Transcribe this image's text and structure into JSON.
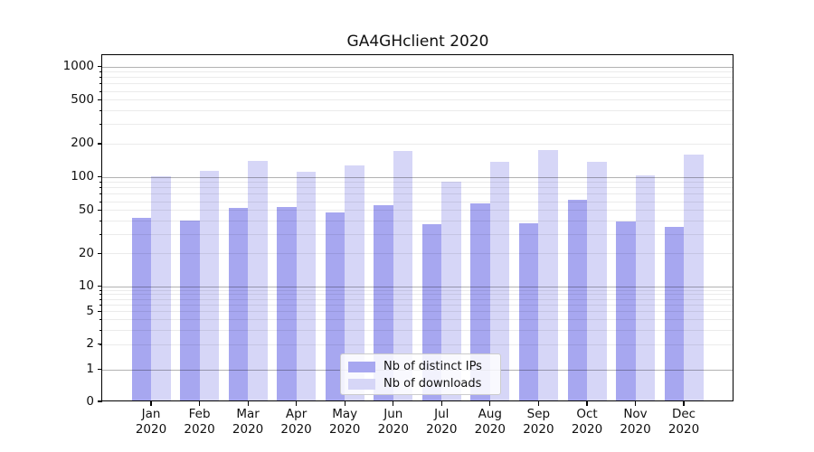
{
  "chart_data": {
    "type": "bar",
    "title": "GA4GHclient 2020",
    "categories": [
      "Jan\n2020",
      "Feb\n2020",
      "Mar\n2020",
      "Apr\n2020",
      "May\n2020",
      "Jun\n2020",
      "Jul\n2020",
      "Aug\n2020",
      "Sep\n2020",
      "Oct\n2020",
      "Nov\n2020",
      "Dec\n2020"
    ],
    "series": [
      {
        "name": "Nb of distinct IPs",
        "color": "#a7a7f0",
        "values": [
          42,
          40,
          52,
          53,
          47,
          55,
          37,
          57,
          38,
          62,
          39,
          35
        ]
      },
      {
        "name": "Nb of downloads",
        "color": "#d6d6f7",
        "values": [
          102,
          113,
          140,
          112,
          128,
          172,
          91,
          137,
          174,
          137,
          104,
          158
        ]
      }
    ],
    "xlabel": "",
    "ylabel": "",
    "yscale": "symlog",
    "yticks": [
      0,
      1,
      2,
      5,
      10,
      20,
      50,
      100,
      200,
      500,
      1000
    ],
    "ylim": [
      0,
      1270
    ],
    "grid": "both",
    "legend_position": "lower center",
    "colors": {
      "major_grid": "rgba(0,0,0,0.30)",
      "minor_grid": "rgba(0,0,0,0.08)",
      "spine": "#000000",
      "background": "#ffffff"
    }
  },
  "legend": {
    "items": [
      {
        "label": "Nb of distinct IPs"
      },
      {
        "label": "Nb of downloads"
      }
    ]
  }
}
